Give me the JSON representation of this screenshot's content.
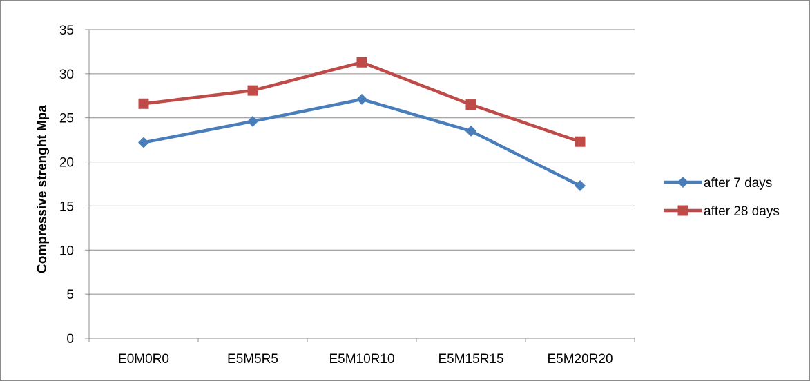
{
  "chart_data": {
    "type": "line",
    "title": "",
    "xlabel": "",
    "ylabel": "Compressive strenght Mpa",
    "ylim": [
      0,
      35
    ],
    "yticks": [
      0,
      5,
      10,
      15,
      20,
      25,
      30,
      35
    ],
    "grid": true,
    "legend_position": "right",
    "categories": [
      "E0M0R0",
      "E5M5R5",
      "E5M10R10",
      "E5M15R15",
      "E5M20R20"
    ],
    "series": [
      {
        "name": "after 7 days",
        "values": [
          22.2,
          24.6,
          27.1,
          23.5,
          17.3
        ],
        "color": "#4a7ebb",
        "marker": "diamond"
      },
      {
        "name": "after 28 days",
        "values": [
          26.6,
          28.1,
          31.3,
          26.5,
          22.3
        ],
        "color": "#be4b48",
        "marker": "square"
      }
    ]
  }
}
